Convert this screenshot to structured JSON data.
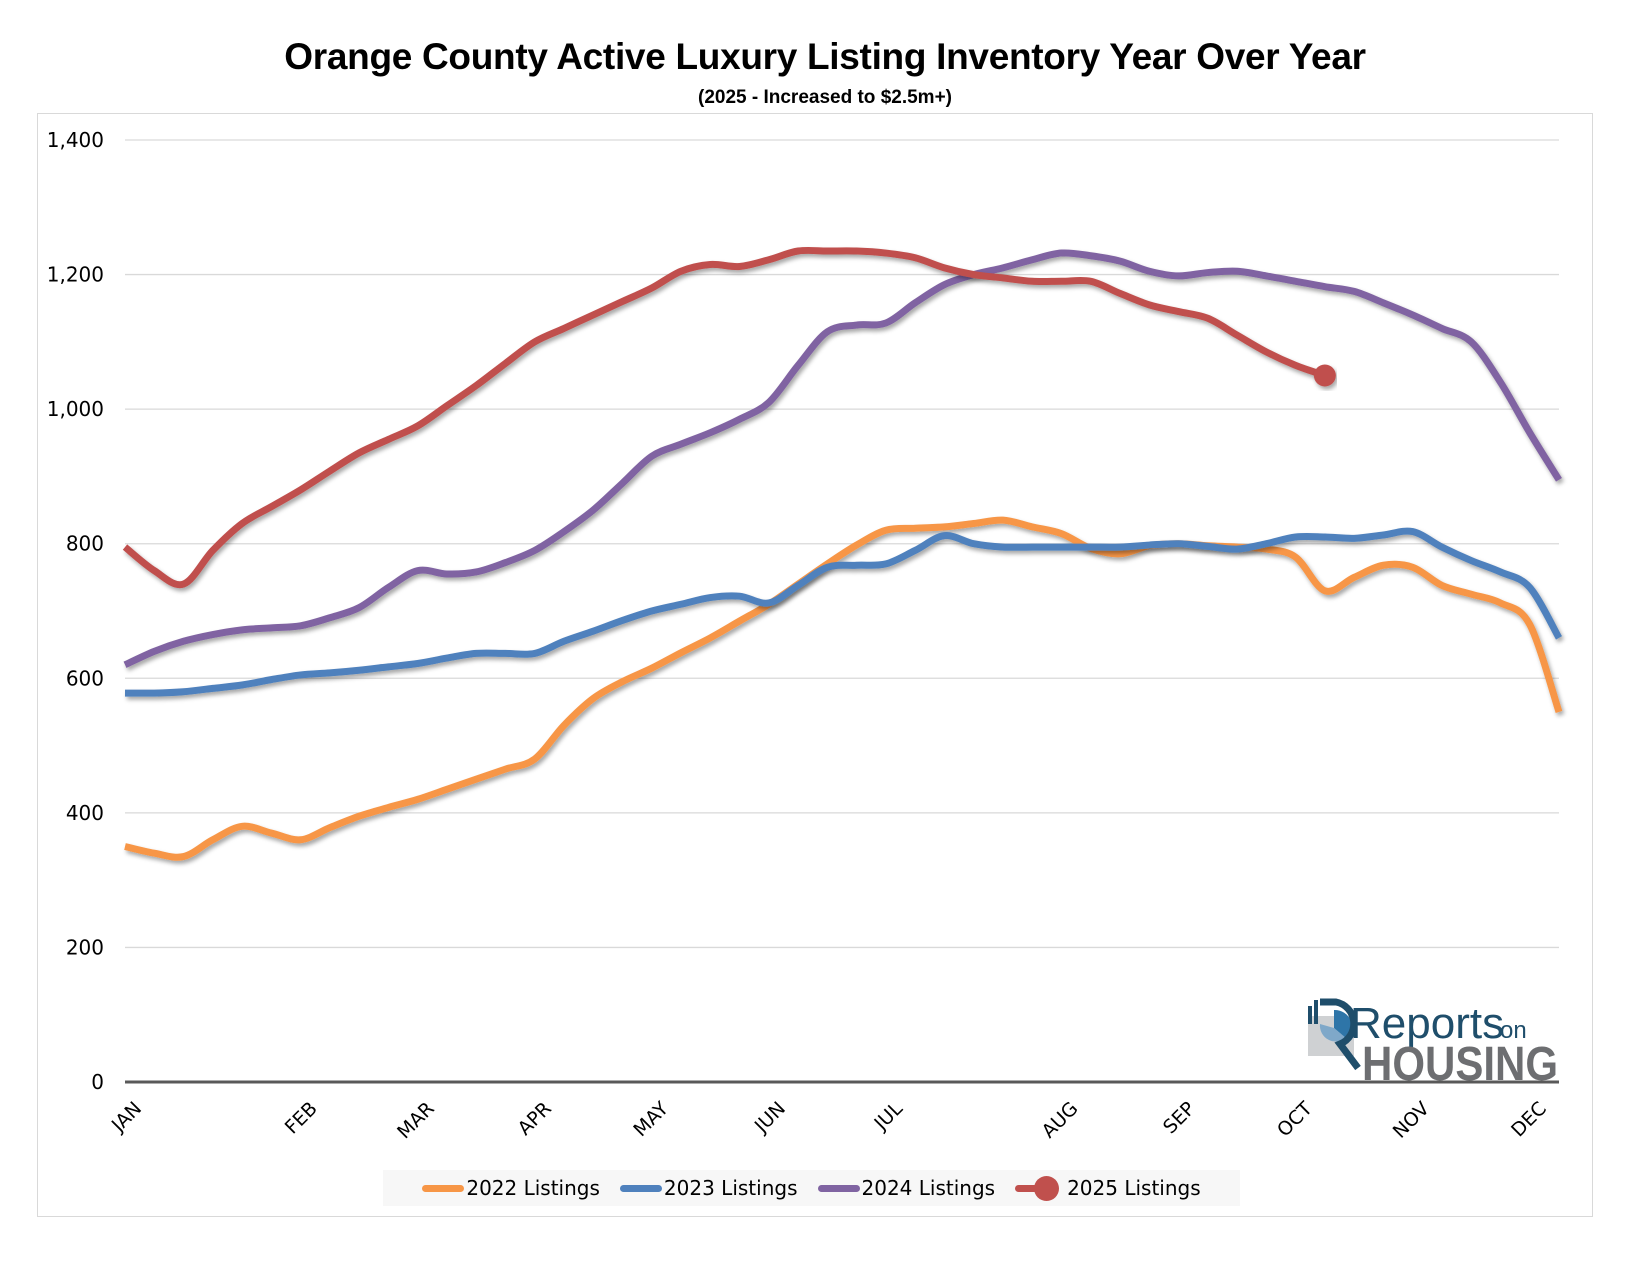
{
  "chart_data": {
    "type": "line",
    "title": "Orange County Active Luxury Listing Inventory Year Over Year",
    "subtitle": "(2025 - Increased to $2.5m+)",
    "xlabel": "",
    "ylabel": "",
    "x_unit": "week index (weekly data, Jan to Dec)",
    "xlim": [
      0,
      49
    ],
    "ylim": [
      0,
      1400
    ],
    "yticks": [
      0,
      200,
      400,
      600,
      800,
      1000,
      1200,
      1400
    ],
    "ytick_labels": [
      "0",
      "200",
      "400",
      "600",
      "800",
      "1,000",
      "1,200",
      "1,400"
    ],
    "xticks": [
      {
        "label": "JAN",
        "x": 0
      },
      {
        "label": "FEB",
        "x": 6
      },
      {
        "label": "MAR",
        "x": 10
      },
      {
        "label": "APR",
        "x": 14
      },
      {
        "label": "MAY",
        "x": 18
      },
      {
        "label": "JUN",
        "x": 22
      },
      {
        "label": "JUL",
        "x": 26
      },
      {
        "label": "AUG",
        "x": 32
      },
      {
        "label": "SEP",
        "x": 36
      },
      {
        "label": "OCT",
        "x": 40
      },
      {
        "label": "NOV",
        "x": 44
      },
      {
        "label": "DEC",
        "x": 48
      }
    ],
    "grid": true,
    "legend_position": "bottom",
    "series": [
      {
        "name": "2022 Listings",
        "color": "#f79646",
        "end_marker": false,
        "values": [
          350,
          340,
          335,
          360,
          380,
          370,
          360,
          378,
          395,
          408,
          420,
          435,
          450,
          465,
          480,
          530,
          570,
          595,
          615,
          638,
          660,
          685,
          710,
          740,
          770,
          798,
          820,
          823,
          825,
          830,
          835,
          825,
          815,
          793,
          785,
          797,
          800,
          797,
          795,
          792,
          780,
          730,
          750,
          768,
          765,
          738,
          725,
          712,
          680,
          550
        ]
      },
      {
        "name": "2023 Listings",
        "color": "#4f81bd",
        "end_marker": false,
        "values": [
          578,
          578,
          580,
          585,
          590,
          598,
          605,
          608,
          612,
          617,
          622,
          630,
          637,
          637,
          637,
          655,
          670,
          686,
          700,
          710,
          720,
          722,
          712,
          738,
          765,
          768,
          770,
          790,
          812,
          800,
          795,
          795,
          795,
          795,
          795,
          798,
          800,
          796,
          792,
          800,
          810,
          810,
          808,
          813,
          818,
          795,
          775,
          758,
          735,
          660
        ]
      },
      {
        "name": "2024 Listings",
        "color": "#8064a2",
        "end_marker": false,
        "values": [
          620,
          640,
          655,
          665,
          672,
          675,
          678,
          690,
          705,
          735,
          760,
          755,
          758,
          772,
          790,
          818,
          850,
          890,
          930,
          948,
          965,
          985,
          1010,
          1065,
          1115,
          1125,
          1128,
          1158,
          1185,
          1200,
          1210,
          1222,
          1232,
          1228,
          1220,
          1205,
          1198,
          1203,
          1205,
          1198,
          1190,
          1182,
          1175,
          1158,
          1140,
          1120,
          1100,
          1040,
          965,
          895
        ]
      },
      {
        "name": "2025 Listings",
        "color": "#c0504d",
        "end_marker": true,
        "values": [
          795,
          760,
          740,
          790,
          830,
          855,
          880,
          908,
          935,
          955,
          975,
          1005,
          1035,
          1068,
          1100,
          1120,
          1140,
          1160,
          1180,
          1205,
          1215,
          1212,
          1222,
          1235,
          1235,
          1235,
          1232,
          1225,
          1210,
          1200,
          1195,
          1190,
          1190,
          1190,
          1172,
          1155,
          1145,
          1135,
          1110,
          1085,
          1065,
          1050
        ]
      }
    ]
  },
  "logo": {
    "word1": "Reports",
    "word2": "on",
    "word3": "HOUSING",
    "primary_color": "#1f4e6b",
    "secondary_color": "#6d6e71"
  }
}
